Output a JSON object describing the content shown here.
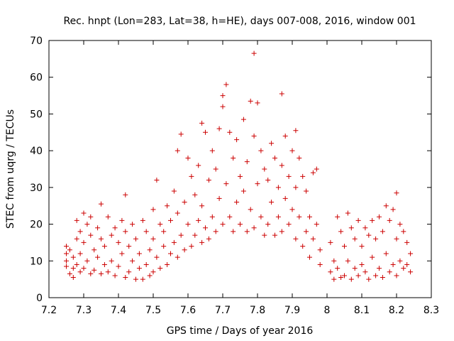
{
  "chart_data": {
    "type": "scatter",
    "title": "Rec. hnpt (Lon=283, Lat=38, h=HE), days 007-008, 2016, window 001",
    "xlabel": "GPS time / Days of year 2016",
    "ylabel": "STEC from uqrg / TECUs",
    "xlim": [
      7.2,
      8.3
    ],
    "ylim": [
      0,
      70
    ],
    "x_ticks": [
      "7.2",
      "7.3",
      "7.4",
      "7.5",
      "7.6",
      "7.7",
      "7.8",
      "7.9",
      "8",
      "8.1",
      "8.2",
      "8.3"
    ],
    "y_ticks": [
      "0",
      "10",
      "20",
      "30",
      "40",
      "50",
      "60",
      "70"
    ],
    "grid": false,
    "legend": "none",
    "marker": "+",
    "color": "#cc0000",
    "points": [
      [
        7.25,
        14
      ],
      [
        7.25,
        12
      ],
      [
        7.25,
        10
      ],
      [
        7.25,
        8.5
      ],
      [
        7.26,
        13
      ],
      [
        7.26,
        6.5
      ],
      [
        7.27,
        11
      ],
      [
        7.27,
        8
      ],
      [
        7.27,
        5.5
      ],
      [
        7.28,
        21
      ],
      [
        7.28,
        16
      ],
      [
        7.28,
        9
      ],
      [
        7.29,
        18
      ],
      [
        7.29,
        12
      ],
      [
        7.29,
        7
      ],
      [
        7.3,
        23
      ],
      [
        7.3,
        15
      ],
      [
        7.3,
        8
      ],
      [
        7.31,
        20
      ],
      [
        7.31,
        10
      ],
      [
        7.32,
        22
      ],
      [
        7.32,
        17
      ],
      [
        7.32,
        6.5
      ],
      [
        7.33,
        13
      ],
      [
        7.33,
        7.5
      ],
      [
        7.34,
        19
      ],
      [
        7.34,
        11
      ],
      [
        7.35,
        25.5
      ],
      [
        7.35,
        16
      ],
      [
        7.35,
        6.5
      ],
      [
        7.36,
        14
      ],
      [
        7.36,
        9
      ],
      [
        7.37,
        22
      ],
      [
        7.37,
        7
      ],
      [
        7.38,
        17
      ],
      [
        7.38,
        10
      ],
      [
        7.39,
        19
      ],
      [
        7.39,
        6
      ],
      [
        7.4,
        15
      ],
      [
        7.4,
        8.5
      ],
      [
        7.41,
        21
      ],
      [
        7.41,
        12
      ],
      [
        7.42,
        28
      ],
      [
        7.42,
        18
      ],
      [
        7.42,
        5.5
      ],
      [
        7.43,
        14
      ],
      [
        7.43,
        7
      ],
      [
        7.44,
        20
      ],
      [
        7.44,
        10
      ],
      [
        7.45,
        16
      ],
      [
        7.45,
        5
      ],
      [
        7.46,
        12
      ],
      [
        7.46,
        8
      ],
      [
        7.47,
        21
      ],
      [
        7.47,
        5
      ],
      [
        7.48,
        18
      ],
      [
        7.48,
        9
      ],
      [
        7.49,
        13
      ],
      [
        7.49,
        6
      ],
      [
        7.5,
        24
      ],
      [
        7.5,
        16
      ],
      [
        7.5,
        7
      ],
      [
        7.51,
        32
      ],
      [
        7.51,
        11
      ],
      [
        7.52,
        20
      ],
      [
        7.52,
        8
      ],
      [
        7.53,
        18
      ],
      [
        7.53,
        14
      ],
      [
        7.54,
        25
      ],
      [
        7.54,
        9
      ],
      [
        7.55,
        21
      ],
      [
        7.55,
        12
      ],
      [
        7.56,
        29
      ],
      [
        7.56,
        15
      ],
      [
        7.57,
        40
      ],
      [
        7.57,
        23
      ],
      [
        7.57,
        11
      ],
      [
        7.58,
        44.5
      ],
      [
        7.58,
        17
      ],
      [
        7.59,
        26
      ],
      [
        7.59,
        13
      ],
      [
        7.6,
        38
      ],
      [
        7.6,
        20
      ],
      [
        7.61,
        33
      ],
      [
        7.61,
        14
      ],
      [
        7.62,
        28
      ],
      [
        7.62,
        17
      ],
      [
        7.63,
        36
      ],
      [
        7.63,
        21
      ],
      [
        7.64,
        47.5
      ],
      [
        7.64,
        25
      ],
      [
        7.64,
        15
      ],
      [
        7.65,
        45
      ],
      [
        7.65,
        19
      ],
      [
        7.66,
        32
      ],
      [
        7.66,
        16
      ],
      [
        7.67,
        40
      ],
      [
        7.67,
        22
      ],
      [
        7.68,
        35
      ],
      [
        7.68,
        18
      ],
      [
        7.69,
        46
      ],
      [
        7.69,
        27
      ],
      [
        7.7,
        55
      ],
      [
        7.7,
        52
      ],
      [
        7.7,
        20
      ],
      [
        7.71,
        58
      ],
      [
        7.71,
        31
      ],
      [
        7.72,
        45
      ],
      [
        7.72,
        22
      ],
      [
        7.73,
        38
      ],
      [
        7.73,
        18
      ],
      [
        7.74,
        43
      ],
      [
        7.74,
        26
      ],
      [
        7.75,
        33
      ],
      [
        7.75,
        20
      ],
      [
        7.76,
        48.5
      ],
      [
        7.76,
        29
      ],
      [
        7.77,
        37
      ],
      [
        7.77,
        18
      ],
      [
        7.78,
        53.5
      ],
      [
        7.78,
        24
      ],
      [
        7.79,
        66.5
      ],
      [
        7.79,
        44
      ],
      [
        7.79,
        19
      ],
      [
        7.8,
        53
      ],
      [
        7.8,
        31
      ],
      [
        7.81,
        40
      ],
      [
        7.81,
        22
      ],
      [
        7.82,
        35
      ],
      [
        7.82,
        17
      ],
      [
        7.83,
        32
      ],
      [
        7.83,
        20
      ],
      [
        7.84,
        42
      ],
      [
        7.84,
        26
      ],
      [
        7.85,
        38
      ],
      [
        7.85,
        17
      ],
      [
        7.86,
        30
      ],
      [
        7.86,
        22
      ],
      [
        7.87,
        55.5
      ],
      [
        7.87,
        36
      ],
      [
        7.87,
        18
      ],
      [
        7.88,
        44
      ],
      [
        7.88,
        27
      ],
      [
        7.89,
        33
      ],
      [
        7.89,
        20
      ],
      [
        7.9,
        40
      ],
      [
        7.9,
        24
      ],
      [
        7.91,
        45.5
      ],
      [
        7.91,
        30
      ],
      [
        7.91,
        16
      ],
      [
        7.92,
        38
      ],
      [
        7.92,
        22
      ],
      [
        7.93,
        33
      ],
      [
        7.93,
        14
      ],
      [
        7.94,
        29
      ],
      [
        7.94,
        18
      ],
      [
        7.95,
        22
      ],
      [
        7.95,
        11
      ],
      [
        7.96,
        34
      ],
      [
        7.96,
        16
      ],
      [
        7.97,
        35
      ],
      [
        7.97,
        20
      ],
      [
        7.98,
        13
      ],
      [
        7.98,
        9
      ],
      [
        8.01,
        15
      ],
      [
        8.01,
        7
      ],
      [
        8.02,
        10
      ],
      [
        8.02,
        5
      ],
      [
        8.03,
        22
      ],
      [
        8.03,
        8
      ],
      [
        8.04,
        18
      ],
      [
        8.04,
        5.5
      ],
      [
        8.05,
        14
      ],
      [
        8.05,
        6
      ],
      [
        8.06,
        23
      ],
      [
        8.06,
        10
      ],
      [
        8.07,
        19
      ],
      [
        8.07,
        5
      ],
      [
        8.08,
        16
      ],
      [
        8.08,
        8
      ],
      [
        8.09,
        21
      ],
      [
        8.09,
        6
      ],
      [
        8.1,
        14
      ],
      [
        8.1,
        9
      ],
      [
        8.11,
        19
      ],
      [
        8.11,
        7
      ],
      [
        8.12,
        17
      ],
      [
        8.12,
        5
      ],
      [
        8.13,
        21
      ],
      [
        8.13,
        11
      ],
      [
        8.14,
        16
      ],
      [
        8.14,
        6
      ],
      [
        8.15,
        22
      ],
      [
        8.15,
        8
      ],
      [
        8.16,
        18
      ],
      [
        8.16,
        5.5
      ],
      [
        8.17,
        25
      ],
      [
        8.17,
        12
      ],
      [
        8.18,
        21
      ],
      [
        8.18,
        7
      ],
      [
        8.19,
        24
      ],
      [
        8.19,
        9
      ],
      [
        8.2,
        28.5
      ],
      [
        8.2,
        16
      ],
      [
        8.2,
        6
      ],
      [
        8.21,
        20
      ],
      [
        8.21,
        10
      ],
      [
        8.22,
        18
      ],
      [
        8.22,
        8
      ],
      [
        8.23,
        15
      ],
      [
        8.23,
        9
      ],
      [
        8.24,
        12
      ],
      [
        8.24,
        7
      ]
    ]
  }
}
